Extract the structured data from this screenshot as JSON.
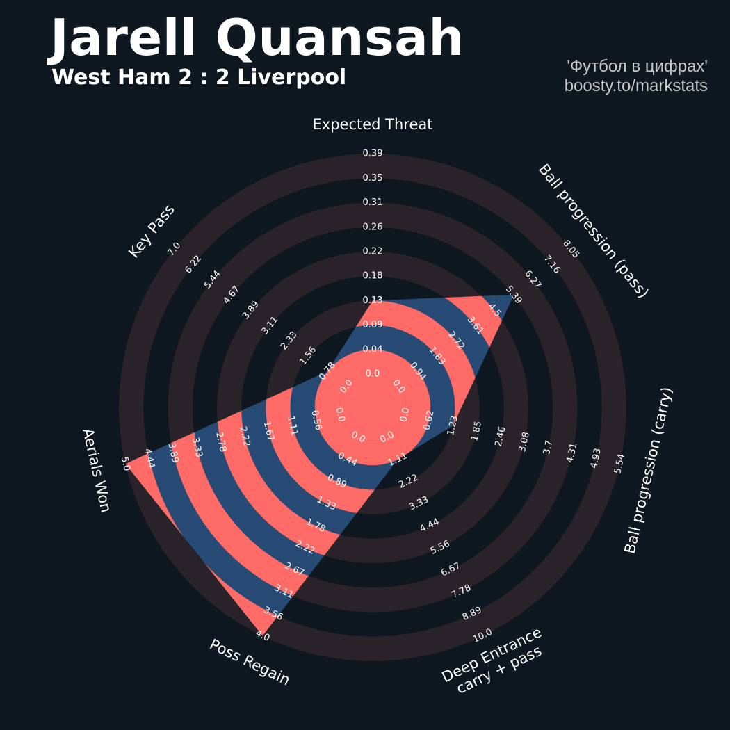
{
  "header": {
    "title": "Jarell Quansah",
    "subtitle": "West Ham 2 : 2 Liverpool",
    "credit_line1": "'Футбол в цифрах'",
    "credit_line2": "boosty.to/markstats"
  },
  "colors": {
    "background": "#0f1820",
    "ring_band": "#2a2329",
    "ring_gap": "#0f1820",
    "player_polygon": "#274b75",
    "player_stripe": "#ff6b66",
    "text": "#ffffff",
    "credit_text": "#c8c8c8"
  },
  "chart_data": {
    "type": "radar",
    "title": "Jarell Quansah",
    "subtitle": "West Ham 2 : 2 Liverpool",
    "axes": [
      {
        "name": "Expected Threat",
        "ticks": [
          "0.0",
          "0.04",
          "0.09",
          "0.13",
          "0.18",
          "0.22",
          "0.26",
          "0.31",
          "0.35",
          "0.39"
        ],
        "min": 0.0,
        "max": 0.39
      },
      {
        "name": "Ball progression (pass)",
        "ticks": [
          "0.0",
          "0.94",
          "1.83",
          "2.72",
          "3.61",
          "4.5",
          "5.39",
          "6.27",
          "7.16",
          "8.05"
        ],
        "min": 0.0,
        "max": 8.05
      },
      {
        "name": "Ball progression (carry)",
        "ticks": [
          "0.0",
          "0.62",
          "1.23",
          "1.85",
          "2.46",
          "3.08",
          "3.7",
          "4.31",
          "4.93",
          "5.54"
        ],
        "min": 0.0,
        "max": 5.54
      },
      {
        "name": "Deep Entrance\ncarry + pass",
        "ticks": [
          "0.0",
          "1.11",
          "2.22",
          "3.33",
          "4.44",
          "5.56",
          "6.67",
          "7.78",
          "8.89",
          "10.0"
        ],
        "min": 0.0,
        "max": 10.0
      },
      {
        "name": "Poss Regain",
        "ticks": [
          "0.0",
          "0.44",
          "0.89",
          "1.33",
          "1.78",
          "2.22",
          "2.67",
          "3.11",
          "3.56",
          "4.0"
        ],
        "min": 0.0,
        "max": 4.0
      },
      {
        "name": "Aerials Won",
        "ticks": [
          "0.0",
          "0.56",
          "1.11",
          "1.67",
          "2.22",
          "2.78",
          "3.33",
          "3.89",
          "4.44",
          "5.0"
        ],
        "min": 0.0,
        "max": 5.0
      },
      {
        "name": "Key Pass",
        "ticks": [
          "0.0",
          "0.78",
          "1.56",
          "2.33",
          "3.11",
          "3.89",
          "4.67",
          "5.44",
          "6.22",
          "7.0"
        ],
        "min": 0.0,
        "max": 7.0
      }
    ],
    "series": [
      {
        "values": [
          0.13,
          5.39,
          1.23,
          1.11,
          4.0,
          5.0,
          0.78
        ]
      }
    ]
  }
}
